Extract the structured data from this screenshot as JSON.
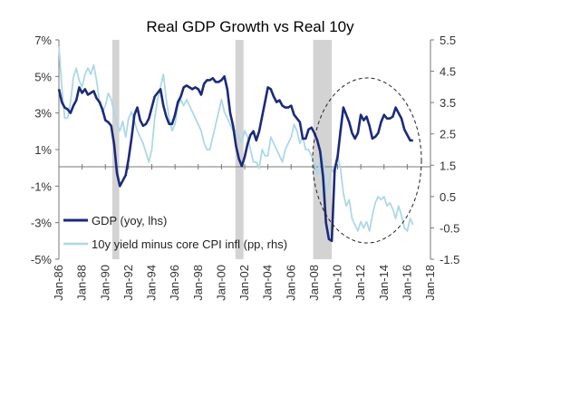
{
  "chart_data": {
    "type": "line",
    "title": "Real GDP Growth vs Real 10y",
    "x_tick_labels": [
      "Jan-86",
      "Jan-88",
      "Jan-90",
      "Jan-92",
      "Jan-94",
      "Jan-96",
      "Jan-98",
      "Jan-00",
      "Jan-02",
      "Jan-04",
      "Jan-06",
      "Jan-08",
      "Jan-10",
      "Jan-12",
      "Jan-14",
      "Jan-16",
      "Jan-18"
    ],
    "x_range": [
      1986.0,
      2018.0
    ],
    "y_left": {
      "range": [
        -5,
        7
      ],
      "ticks": [
        7,
        5,
        3,
        1,
        -1,
        -3,
        -5
      ],
      "tick_labels": [
        "7%",
        "5%",
        "3%",
        "1%",
        "-1%",
        "-3%",
        "-5%"
      ]
    },
    "y_right": {
      "range": [
        -1.5,
        5.5
      ],
      "ticks": [
        5.5,
        4.5,
        3.5,
        2.5,
        1.5,
        0.5,
        -0.5,
        -1.5
      ],
      "tick_labels": [
        "5.5",
        "4.5",
        "3.5",
        "2.5",
        "1.5",
        "0.5",
        "-0.5",
        "-1.5"
      ]
    },
    "recessions": [
      [
        1990.6,
        1991.2
      ],
      [
        2001.2,
        2001.9
      ],
      [
        2007.9,
        2009.5
      ]
    ],
    "annotation": "dashed ellipse around 2010-2017",
    "legend": {
      "placement": "bottom-left"
    },
    "series": [
      {
        "name": "GDP (yoy, lhs)",
        "axis": "left",
        "color": "#1b2a7a",
        "x": [
          1986.0,
          1986.25,
          1986.5,
          1986.75,
          1987.0,
          1987.25,
          1987.5,
          1987.75,
          1988.0,
          1988.25,
          1988.5,
          1988.75,
          1989.0,
          1989.25,
          1989.5,
          1989.75,
          1990.0,
          1990.25,
          1990.5,
          1990.75,
          1991.0,
          1991.25,
          1991.5,
          1991.75,
          1992.0,
          1992.25,
          1992.5,
          1992.75,
          1993.0,
          1993.25,
          1993.5,
          1993.75,
          1994.0,
          1994.25,
          1994.5,
          1994.75,
          1995.0,
          1995.25,
          1995.5,
          1995.75,
          1996.0,
          1996.25,
          1996.5,
          1996.75,
          1997.0,
          1997.25,
          1997.5,
          1997.75,
          1998.0,
          1998.25,
          1998.5,
          1998.75,
          1999.0,
          1999.25,
          1999.5,
          1999.75,
          2000.0,
          2000.25,
          2000.5,
          2000.75,
          2001.0,
          2001.25,
          2001.5,
          2001.75,
          2002.0,
          2002.25,
          2002.5,
          2002.75,
          2003.0,
          2003.25,
          2003.5,
          2003.75,
          2004.0,
          2004.25,
          2004.5,
          2004.75,
          2005.0,
          2005.25,
          2005.5,
          2005.75,
          2006.0,
          2006.25,
          2006.5,
          2006.75,
          2007.0,
          2007.25,
          2007.5,
          2007.75,
          2008.0,
          2008.25,
          2008.5,
          2008.75,
          2009.0,
          2009.25,
          2009.5,
          2009.75,
          2010.0,
          2010.25,
          2010.5,
          2010.75,
          2011.0,
          2011.25,
          2011.5,
          2011.75,
          2012.0,
          2012.25,
          2012.5,
          2012.75,
          2013.0,
          2013.25,
          2013.5,
          2013.75,
          2014.0,
          2014.25,
          2014.5,
          2014.75,
          2015.0,
          2015.25,
          2015.5,
          2015.75,
          2016.0,
          2016.25,
          2016.5
        ],
        "values": [
          4.3,
          3.6,
          3.3,
          3.2,
          3.0,
          3.4,
          3.7,
          4.4,
          4.1,
          4.3,
          4.0,
          4.1,
          4.2,
          3.8,
          3.6,
          3.2,
          2.6,
          2.5,
          2.3,
          1.3,
          -0.3,
          -1.0,
          -0.7,
          -0.4,
          0.5,
          1.6,
          2.9,
          3.3,
          2.6,
          2.3,
          2.4,
          2.7,
          3.3,
          3.9,
          4.1,
          4.3,
          3.4,
          2.8,
          2.4,
          2.4,
          2.9,
          3.6,
          3.9,
          4.4,
          4.5,
          4.4,
          4.3,
          4.4,
          4.3,
          4.0,
          4.6,
          4.8,
          4.8,
          4.9,
          4.7,
          4.7,
          4.8,
          5.0,
          4.3,
          3.0,
          2.3,
          1.2,
          0.5,
          0.1,
          0.6,
          1.3,
          1.8,
          2.0,
          1.5,
          2.0,
          2.8,
          3.6,
          4.4,
          4.3,
          3.9,
          3.6,
          3.7,
          3.4,
          3.3,
          3.3,
          3.4,
          2.9,
          2.7,
          2.5,
          1.6,
          1.6,
          2.1,
          2.2,
          1.9,
          1.5,
          0.9,
          -0.5,
          -3.0,
          -3.9,
          -4.0,
          -0.1,
          0.6,
          2.0,
          3.3,
          2.9,
          2.5,
          1.9,
          1.6,
          1.9,
          2.9,
          2.6,
          2.8,
          2.3,
          1.6,
          1.7,
          1.9,
          2.5,
          2.9,
          2.7,
          2.7,
          2.8,
          3.3,
          3.0,
          2.7,
          2.1,
          1.8,
          1.5,
          1.5
        ],
        "style": "solid, thick"
      },
      {
        "name": "10y yield minus core CPI infl (pp, rhs)",
        "axis": "right",
        "color": "#add8e6",
        "x": [
          1986.0,
          1986.25,
          1986.5,
          1986.75,
          1987.0,
          1987.25,
          1987.5,
          1987.75,
          1988.0,
          1988.25,
          1988.5,
          1988.75,
          1989.0,
          1989.25,
          1989.5,
          1989.75,
          1990.0,
          1990.25,
          1990.5,
          1990.75,
          1991.0,
          1991.25,
          1991.5,
          1991.75,
          1992.0,
          1992.25,
          1992.5,
          1992.75,
          1993.0,
          1993.25,
          1993.5,
          1993.75,
          1994.0,
          1994.25,
          1994.5,
          1994.75,
          1995.0,
          1995.25,
          1995.5,
          1995.75,
          1996.0,
          1996.25,
          1996.5,
          1996.75,
          1997.0,
          1997.25,
          1997.5,
          1997.75,
          1998.0,
          1998.25,
          1998.5,
          1998.75,
          1999.0,
          1999.25,
          1999.5,
          1999.75,
          2000.0,
          2000.25,
          2000.5,
          2000.75,
          2001.0,
          2001.25,
          2001.5,
          2001.75,
          2002.0,
          2002.25,
          2002.5,
          2002.75,
          2003.0,
          2003.25,
          2003.5,
          2003.75,
          2004.0,
          2004.25,
          2004.5,
          2004.75,
          2005.0,
          2005.25,
          2005.5,
          2005.75,
          2006.0,
          2006.25,
          2006.5,
          2006.75,
          2007.0,
          2007.25,
          2007.5,
          2007.75,
          2008.0,
          2008.25,
          2008.5,
          2008.75,
          2009.0,
          2009.25,
          2009.5,
          2009.75,
          2010.0,
          2010.25,
          2010.5,
          2010.75,
          2011.0,
          2011.25,
          2011.5,
          2011.75,
          2012.0,
          2012.25,
          2012.5,
          2012.75,
          2013.0,
          2013.25,
          2013.5,
          2013.75,
          2014.0,
          2014.25,
          2014.5,
          2014.75,
          2015.0,
          2015.25,
          2015.5,
          2015.75,
          2016.0,
          2016.25,
          2016.5
        ],
        "values": [
          5.3,
          4.0,
          3.0,
          3.0,
          3.5,
          4.3,
          4.6,
          4.2,
          4.0,
          4.4,
          4.6,
          4.4,
          4.7,
          4.2,
          3.5,
          3.2,
          3.4,
          3.8,
          3.6,
          3.2,
          2.8,
          2.6,
          2.9,
          2.4,
          3.0,
          3.2,
          2.9,
          2.6,
          2.4,
          2.2,
          1.9,
          1.6,
          2.0,
          3.0,
          3.6,
          4.0,
          4.4,
          3.6,
          3.0,
          2.6,
          2.8,
          3.4,
          3.6,
          3.4,
          3.6,
          3.4,
          3.2,
          3.0,
          2.8,
          2.6,
          2.2,
          2.0,
          2.0,
          2.4,
          2.8,
          3.2,
          3.6,
          3.2,
          3.0,
          2.8,
          2.6,
          2.6,
          2.4,
          2.2,
          2.6,
          2.4,
          2.0,
          1.6,
          1.6,
          1.4,
          2.0,
          1.8,
          1.8,
          2.4,
          2.2,
          2.0,
          1.8,
          1.6,
          2.0,
          2.2,
          2.4,
          2.8,
          2.6,
          2.2,
          2.4,
          2.0,
          2.0,
          1.8,
          1.6,
          1.2,
          1.6,
          1.8,
          0.5,
          1.0,
          1.4,
          1.2,
          1.8,
          1.4,
          0.6,
          0.2,
          0.4,
          -0.2,
          -0.4,
          -0.6,
          -0.3,
          -0.5,
          -0.3,
          -0.6,
          -0.1,
          0.3,
          0.5,
          0.4,
          0.5,
          0.2,
          0.3,
          0.1,
          -0.2,
          0.2,
          -0.1,
          -0.5,
          -0.6,
          -0.2,
          -0.4
        ],
        "style": "solid, thin, noisy"
      }
    ]
  }
}
